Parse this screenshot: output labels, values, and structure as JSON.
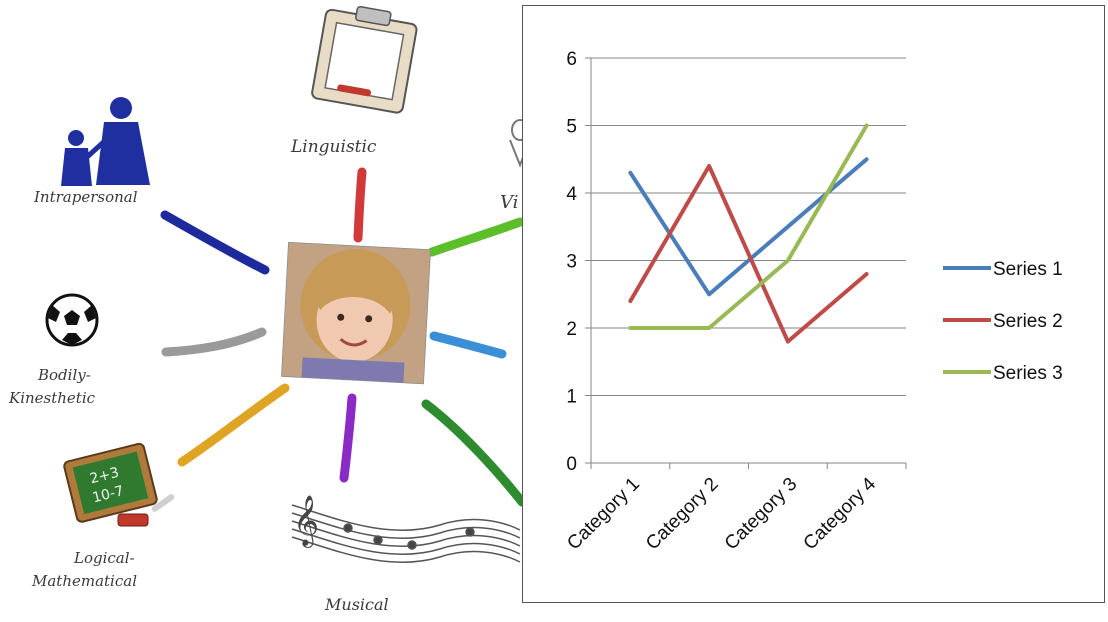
{
  "illustration": {
    "labels": {
      "linguistic": "Linguistic",
      "intrapersonal": "Intrapersonal",
      "visual_partial": "Vi",
      "bodily_line1": "Bodily-",
      "bodily_line2": "Kinesthetic",
      "logical_line1": "Logical-",
      "logical_line2": "Mathematical",
      "musical": "Musical",
      "chalkboard_line1": "2+3",
      "chalkboard_line2": "10-7"
    },
    "spoke_colors": {
      "linguistic": "#d23a3a",
      "intrapersonal": "#1e2a9c",
      "visual": "#5cbf2a",
      "bodily": "#9a9a9a",
      "spatial": "#3b8fd6",
      "logical": "#e0a424",
      "musical": "#8a2bc6",
      "naturalist": "#2e8b2e"
    },
    "icons": [
      "clipboard-icon",
      "family-silhouette-icon",
      "soccer-ball-icon",
      "chalkboard-icon",
      "music-staff-icon",
      "child-photo"
    ]
  },
  "chart_data": {
    "type": "line",
    "categories": [
      "Category 1",
      "Category 2",
      "Category 3",
      "Category 4"
    ],
    "series": [
      {
        "name": "Series 1",
        "color": "#4a7ebb",
        "values": [
          4.3,
          2.5,
          3.5,
          4.5
        ]
      },
      {
        "name": "Series 2",
        "color": "#be4b48",
        "values": [
          2.4,
          4.4,
          1.8,
          2.8
        ]
      },
      {
        "name": "Series 3",
        "color": "#98b954",
        "values": [
          2.0,
          2.0,
          3.0,
          5.0
        ]
      }
    ],
    "yticks": [
      "0",
      "1",
      "2",
      "3",
      "4",
      "5",
      "6"
    ],
    "ylim": [
      0,
      6
    ],
    "grid": true,
    "legend_position": "right"
  }
}
